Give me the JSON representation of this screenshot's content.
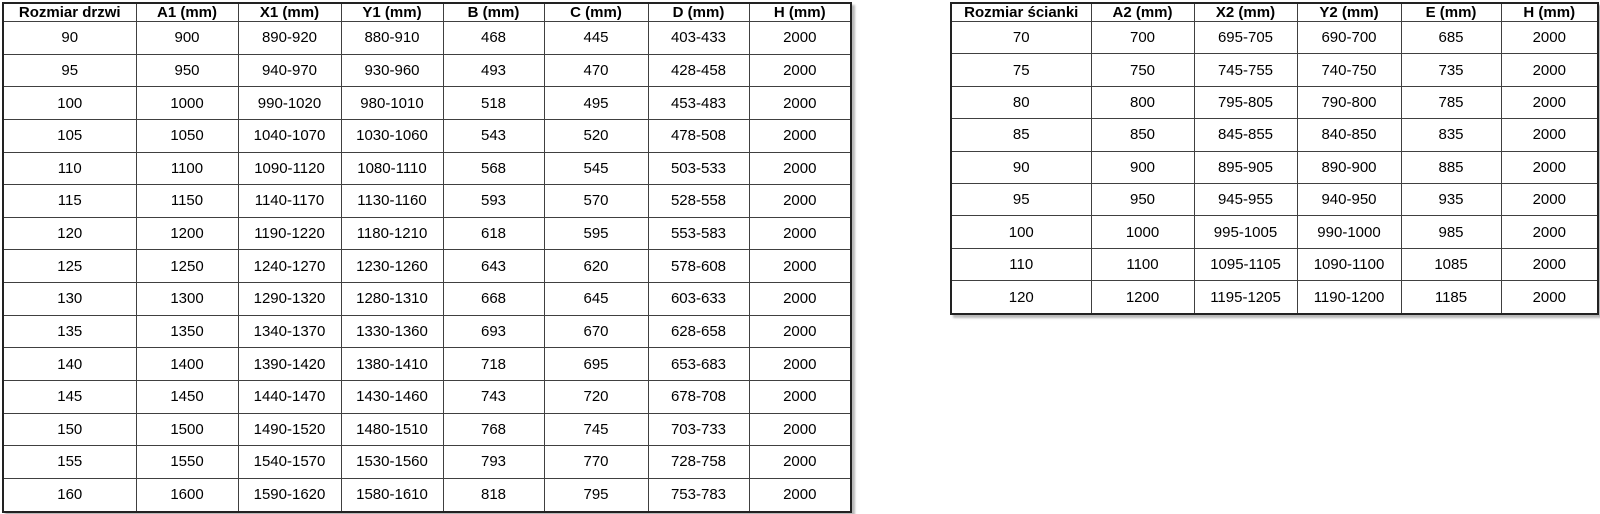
{
  "colors": {
    "background": "#ffffff",
    "text": "#000000",
    "grid_line": "#404040",
    "outer_border": "#222222",
    "shadow": "rgba(0,0,0,0.28)"
  },
  "tables": {
    "doors": {
      "title": "Rozmiar drzwi",
      "headers": [
        "Rozmiar drzwi",
        "A1 (mm)",
        "X1 (mm)",
        "Y1 (mm)",
        "B (mm)",
        "C (mm)",
        "D (mm)",
        "H (mm)"
      ],
      "rows": [
        [
          "90",
          "900",
          "890-920",
          "880-910",
          "468",
          "445",
          "403-433",
          "2000"
        ],
        [
          "95",
          "950",
          "940-970",
          "930-960",
          "493",
          "470",
          "428-458",
          "2000"
        ],
        [
          "100",
          "1000",
          "990-1020",
          "980-1010",
          "518",
          "495",
          "453-483",
          "2000"
        ],
        [
          "105",
          "1050",
          "1040-1070",
          "1030-1060",
          "543",
          "520",
          "478-508",
          "2000"
        ],
        [
          "110",
          "1100",
          "1090-1120",
          "1080-1110",
          "568",
          "545",
          "503-533",
          "2000"
        ],
        [
          "115",
          "1150",
          "1140-1170",
          "1130-1160",
          "593",
          "570",
          "528-558",
          "2000"
        ],
        [
          "120",
          "1200",
          "1190-1220",
          "1180-1210",
          "618",
          "595",
          "553-583",
          "2000"
        ],
        [
          "125",
          "1250",
          "1240-1270",
          "1230-1260",
          "643",
          "620",
          "578-608",
          "2000"
        ],
        [
          "130",
          "1300",
          "1290-1320",
          "1280-1310",
          "668",
          "645",
          "603-633",
          "2000"
        ],
        [
          "135",
          "1350",
          "1340-1370",
          "1330-1360",
          "693",
          "670",
          "628-658",
          "2000"
        ],
        [
          "140",
          "1400",
          "1390-1420",
          "1380-1410",
          "718",
          "695",
          "653-683",
          "2000"
        ],
        [
          "145",
          "1450",
          "1440-1470",
          "1430-1460",
          "743",
          "720",
          "678-708",
          "2000"
        ],
        [
          "150",
          "1500",
          "1490-1520",
          "1480-1510",
          "768",
          "745",
          "703-733",
          "2000"
        ],
        [
          "155",
          "1550",
          "1540-1570",
          "1530-1560",
          "793",
          "770",
          "728-758",
          "2000"
        ],
        [
          "160",
          "1600",
          "1590-1620",
          "1580-1610",
          "818",
          "795",
          "753-783",
          "2000"
        ]
      ]
    },
    "walls": {
      "title": "Rozmiar ścianki",
      "headers": [
        "Rozmiar ścianki",
        "A2 (mm)",
        "X2 (mm)",
        "Y2 (mm)",
        "E (mm)",
        "H (mm)"
      ],
      "rows": [
        [
          "70",
          "700",
          "695-705",
          "690-700",
          "685",
          "2000"
        ],
        [
          "75",
          "750",
          "745-755",
          "740-750",
          "735",
          "2000"
        ],
        [
          "80",
          "800",
          "795-805",
          "790-800",
          "785",
          "2000"
        ],
        [
          "85",
          "850",
          "845-855",
          "840-850",
          "835",
          "2000"
        ],
        [
          "90",
          "900",
          "895-905",
          "890-900",
          "885",
          "2000"
        ],
        [
          "95",
          "950",
          "945-955",
          "940-950",
          "935",
          "2000"
        ],
        [
          "100",
          "1000",
          "995-1005",
          "990-1000",
          "985",
          "2000"
        ],
        [
          "110",
          "1100",
          "1095-1105",
          "1090-1100",
          "1085",
          "2000"
        ],
        [
          "120",
          "1200",
          "1195-1205",
          "1190-1200",
          "1185",
          "2000"
        ]
      ]
    }
  }
}
